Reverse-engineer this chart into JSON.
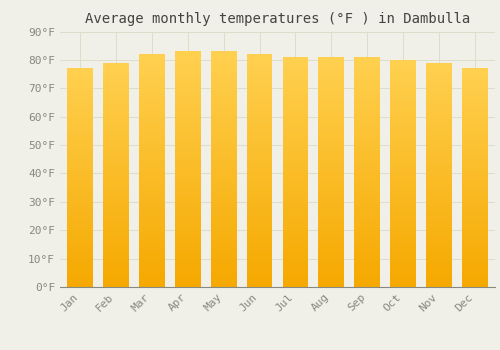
{
  "title": "Average monthly temperatures (°F ) in Dambulla",
  "months": [
    "Jan",
    "Feb",
    "Mar",
    "Apr",
    "May",
    "Jun",
    "Jul",
    "Aug",
    "Sep",
    "Oct",
    "Nov",
    "Dec"
  ],
  "values": [
    77,
    79,
    82,
    83,
    83,
    82,
    81,
    81,
    81,
    80,
    79,
    77
  ],
  "bar_color_bottom": "#F5A800",
  "bar_color_top": "#FFD050",
  "background_color": "#F0EFE8",
  "grid_color": "#DDDDCC",
  "ylim": [
    0,
    90
  ],
  "yticks": [
    0,
    10,
    20,
    30,
    40,
    50,
    60,
    70,
    80,
    90
  ],
  "title_fontsize": 10,
  "tick_fontsize": 8,
  "bar_width": 0.72
}
